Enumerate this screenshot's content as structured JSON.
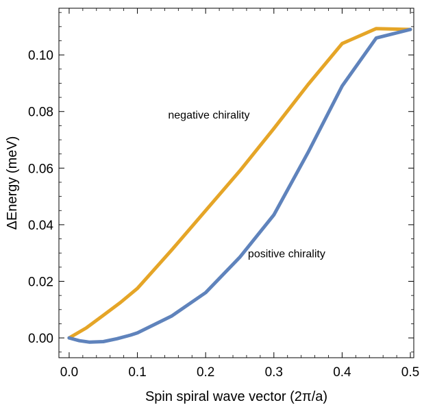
{
  "chart_data": {
    "type": "line",
    "xlabel": "Spin spiral wave vector (2π/a)",
    "ylabel": "ΔEnergy (meV)",
    "xlim": [
      -0.015,
      0.505
    ],
    "ylim": [
      -0.007,
      0.1165
    ],
    "xticks": [
      "0.0",
      "0.1",
      "0.2",
      "0.3",
      "0.4",
      "0.5"
    ],
    "xtick_values": [
      0.0,
      0.1,
      0.2,
      0.3,
      0.4,
      0.5
    ],
    "yticks": [
      "0.00",
      "0.02",
      "0.04",
      "0.06",
      "0.08",
      "0.10"
    ],
    "ytick_values": [
      0.0,
      0.02,
      0.04,
      0.06,
      0.08,
      0.1
    ],
    "grid": false,
    "series": [
      {
        "name": "negative chirality",
        "color": "#E5A527",
        "x": [
          0.0,
          0.025,
          0.05,
          0.075,
          0.1,
          0.15,
          0.2,
          0.25,
          0.3,
          0.35,
          0.4,
          0.45,
          0.5
        ],
        "y": [
          0.0,
          0.0035,
          0.008,
          0.0125,
          0.0175,
          0.031,
          0.045,
          0.059,
          0.074,
          0.0895,
          0.104,
          0.1093,
          0.109
        ]
      },
      {
        "name": "positive chirality",
        "color": "#5F83BC",
        "x": [
          0.0,
          0.015,
          0.03,
          0.05,
          0.07,
          0.09,
          0.1,
          0.15,
          0.2,
          0.25,
          0.3,
          0.35,
          0.4,
          0.45,
          0.5
        ],
        "y": [
          0.0,
          -0.001,
          -0.0015,
          -0.0013,
          -0.0003,
          0.001,
          0.0018,
          0.0077,
          0.016,
          0.0285,
          0.0435,
          0.0655,
          0.089,
          0.106,
          0.109
        ]
      }
    ],
    "annotations": [
      {
        "text": "negative chirality",
        "x": 0.145,
        "y": 0.0775
      },
      {
        "text": "positive chirality",
        "x": 0.262,
        "y": 0.0285
      }
    ]
  }
}
